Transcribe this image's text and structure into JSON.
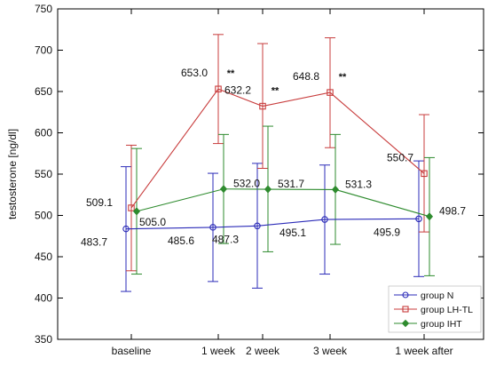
{
  "chart_data": {
    "type": "line",
    "categories": [
      "baseline",
      "1 week",
      "2 week",
      "3 week",
      "1 week after"
    ],
    "ylabel": "testosterone [ng/dl]",
    "xlabel": "",
    "ylim": [
      350,
      750
    ],
    "yticks": [
      350,
      400,
      450,
      500,
      550,
      600,
      650,
      700,
      750
    ],
    "grid": false,
    "legend_position": "bottom-right",
    "series": [
      {
        "name": "group N",
        "color": "#2b2bb8",
        "marker": "circle",
        "values": [
          483.7,
          485.6,
          487.3,
          495.1,
          495.9
        ],
        "labels": [
          "483.7",
          "485.6",
          "487.3",
          "495.1",
          "495.9"
        ],
        "error_low": [
          408,
          420,
          412,
          429,
          426
        ],
        "error_high": [
          559,
          551,
          563,
          561,
          566
        ]
      },
      {
        "name": "group LH-TL",
        "color": "#c83c3c",
        "marker": "square",
        "values": [
          509.1,
          653.0,
          632.2,
          648.8,
          550.7
        ],
        "labels": [
          "509.1",
          "653.0",
          "632.2",
          "648.8",
          "550.7"
        ],
        "significance": [
          "",
          "**",
          "**",
          "**",
          ""
        ],
        "error_low": [
          433,
          587,
          557,
          582,
          480
        ],
        "error_high": [
          585,
          719,
          708,
          715,
          622
        ]
      },
      {
        "name": "group IHT",
        "color": "#2e8b2e",
        "marker": "diamond",
        "values": [
          505.0,
          532.0,
          531.7,
          531.3,
          498.7
        ],
        "labels": [
          "505.0",
          "532.0",
          "531.7",
          "531.3",
          "498.7"
        ],
        "error_low": [
          429,
          466,
          456,
          465,
          427
        ],
        "error_high": [
          581,
          598,
          608,
          598,
          570
        ]
      }
    ]
  }
}
